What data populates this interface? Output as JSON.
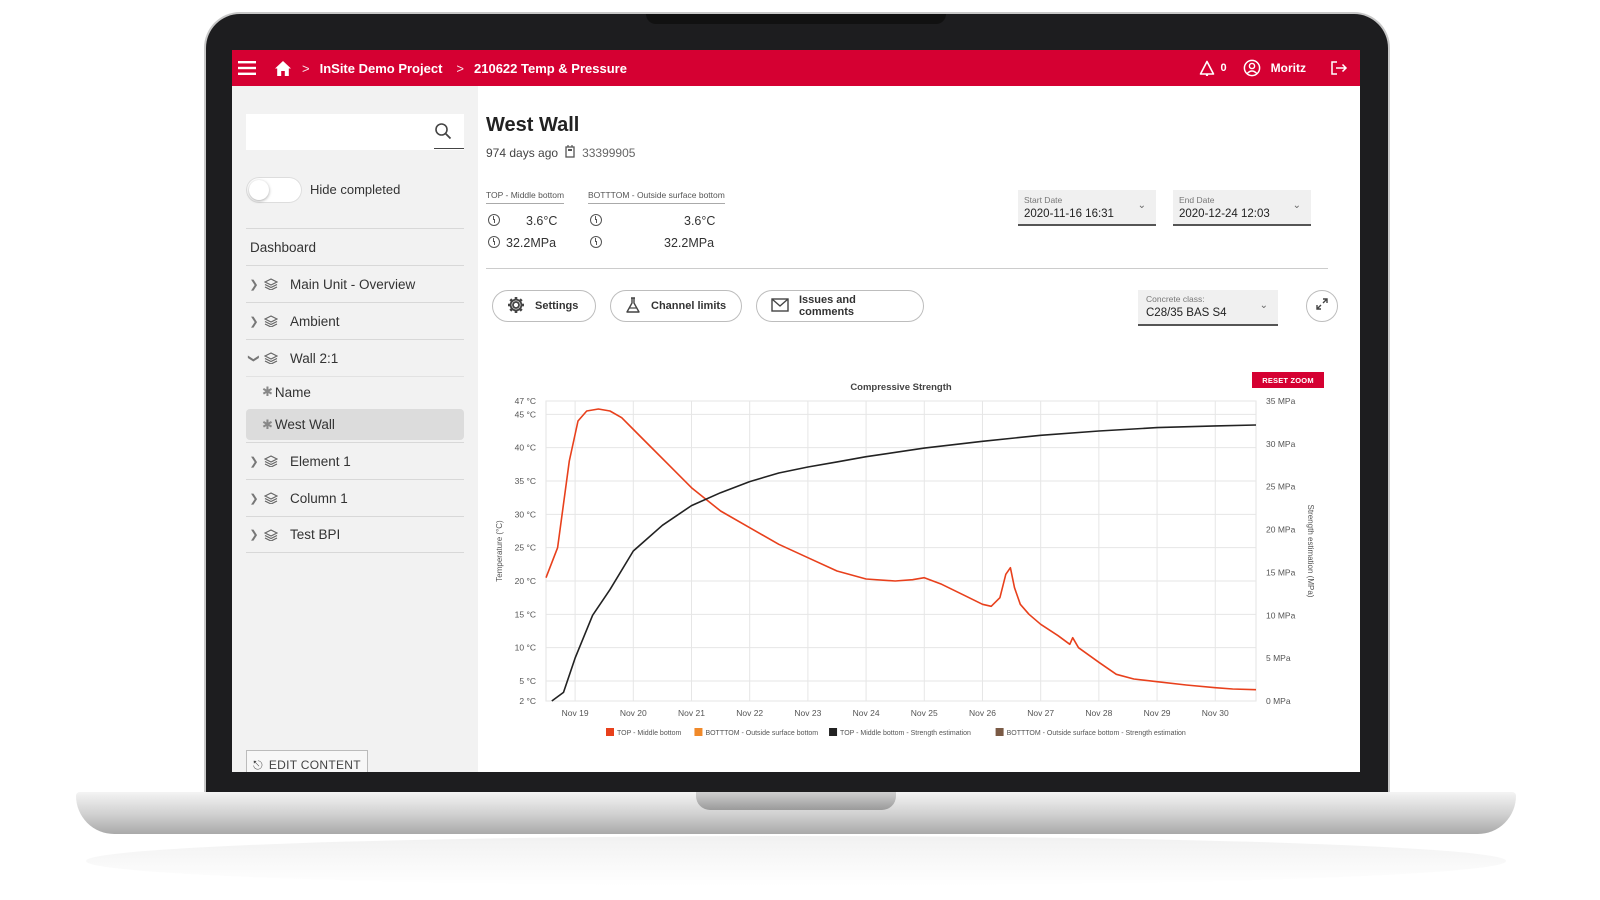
{
  "topbar": {
    "project": "InSite Demo Project",
    "sensor": "210622 Temp & Pressure",
    "alert_count": "0",
    "user": "Moritz",
    "icons": [
      "menu-icon",
      "home-icon",
      "bell-icon",
      "user-icon",
      "logout-icon"
    ]
  },
  "sidebar": {
    "search": {
      "value": "",
      "placeholder": ""
    },
    "hide_completed_label": "Hide completed",
    "hide_completed_on": false,
    "dashboard_label": "Dashboard",
    "items": [
      {
        "label": "Main Unit - Overview",
        "expanded": false
      },
      {
        "label": "Ambient",
        "expanded": false
      },
      {
        "label": "Wall 2:1",
        "expanded": true,
        "children": [
          {
            "label": "Name",
            "active": false
          },
          {
            "label": "West Wall",
            "active": true
          }
        ]
      },
      {
        "label": "Element 1",
        "expanded": false
      },
      {
        "label": "Column 1",
        "expanded": false
      },
      {
        "label": "Test BPI",
        "expanded": false
      }
    ],
    "edit_label": "EDIT CONTENT"
  },
  "main": {
    "title": "West Wall",
    "age": "974 days ago",
    "device_id": "33399905",
    "sensors": [
      {
        "header": "TOP - Middle bottom",
        "temp": "3.6°C",
        "strength": "32.2MPa"
      },
      {
        "header": "BOTTTOM - Outside surface bottom",
        "temp": "3.6°C",
        "strength": "32.2MPa"
      }
    ],
    "start_date": {
      "label": "Start Date",
      "value": "2020-11-16 16:31"
    },
    "end_date": {
      "label": "End Date",
      "value": "2020-12-24 12:03"
    },
    "buttons": {
      "settings": "Settings",
      "channel_limits": "Channel limits",
      "issues": "Issues and comments"
    },
    "concrete": {
      "label": "Concrete class:",
      "value": "C28/35 BAS S4"
    },
    "reset_zoom": "RESET ZOOM"
  },
  "colors": {
    "brand": "#d50032",
    "temp_top": "#e8401c",
    "temp_bottom": "#f0892a",
    "strength_top": "#222222",
    "strength_bottom": "#7a5a45"
  },
  "chart_data": {
    "type": "line",
    "title": "Compressive Strength",
    "x_categories": [
      "Nov 19",
      "Nov 20",
      "Nov 21",
      "Nov 22",
      "Nov 23",
      "Nov 24",
      "Nov 25",
      "Nov 26",
      "Nov 27",
      "Nov 28",
      "Nov 29",
      "Nov 30"
    ],
    "x_range_days": [
      18.5,
      30.7
    ],
    "y_left": {
      "label": "Temperature (°C)",
      "ticks": [
        "2 °C",
        "5 °C",
        "10 °C",
        "15 °C",
        "20 °C",
        "25 °C",
        "30 °C",
        "35 °C",
        "40 °C",
        "45 °C",
        "47 °C"
      ],
      "range": [
        2,
        47
      ]
    },
    "y_right": {
      "label": "Strength estimation (MPa)",
      "ticks": [
        "0 MPa",
        "5 MPa",
        "10 MPa",
        "15 MPa",
        "20 MPa",
        "25 MPa",
        "30 MPa",
        "35 MPa"
      ],
      "range": [
        0,
        35
      ]
    },
    "grid": true,
    "legend_position": "bottom",
    "series": [
      {
        "name": "TOP - Middle bottom",
        "axis": "left",
        "x": [
          18.5,
          18.7,
          18.9,
          19.05,
          19.2,
          19.4,
          19.6,
          19.8,
          20.2,
          20.6,
          21.0,
          21.5,
          22.0,
          22.5,
          23.0,
          23.5,
          24.0,
          24.5,
          24.8,
          25.0,
          25.3,
          25.7,
          26.0,
          26.15,
          26.3,
          26.4,
          26.48,
          26.55,
          26.65,
          26.8,
          27.0,
          27.3,
          27.5,
          27.55,
          27.65,
          28.0,
          28.3,
          28.6,
          29.0,
          29.5,
          30.0,
          30.3,
          30.7
        ],
        "y": [
          20.5,
          25.0,
          38.0,
          44.0,
          45.5,
          45.8,
          45.5,
          44.5,
          41.0,
          37.5,
          34.0,
          30.5,
          28.0,
          25.5,
          23.5,
          21.5,
          20.3,
          20.0,
          20.2,
          20.5,
          19.5,
          17.8,
          16.5,
          16.2,
          17.5,
          21.0,
          22.0,
          19.0,
          16.5,
          15.0,
          13.5,
          11.8,
          10.5,
          11.5,
          10.0,
          7.8,
          6.0,
          5.3,
          4.9,
          4.4,
          4.0,
          3.8,
          3.7
        ]
      },
      {
        "name": "BOTTTOM - Outside surface bottom",
        "axis": "left",
        "x": [],
        "y": []
      },
      {
        "name": "TOP - Middle bottom - Strength estimation",
        "axis": "right",
        "x": [
          18.6,
          18.8,
          19.0,
          19.3,
          19.6,
          20.0,
          20.5,
          21.0,
          21.5,
          22.0,
          22.5,
          23.0,
          23.5,
          24.0,
          25.0,
          26.0,
          27.0,
          28.0,
          29.0,
          30.0,
          30.7
        ],
        "y": [
          0,
          1.0,
          5.0,
          10.0,
          13.0,
          17.5,
          20.5,
          22.8,
          24.3,
          25.6,
          26.6,
          27.3,
          27.9,
          28.5,
          29.5,
          30.3,
          31.0,
          31.5,
          31.9,
          32.1,
          32.2
        ]
      },
      {
        "name": "BOTTTOM - Outside surface bottom - Strength estimation",
        "axis": "right",
        "x": [],
        "y": []
      }
    ]
  }
}
